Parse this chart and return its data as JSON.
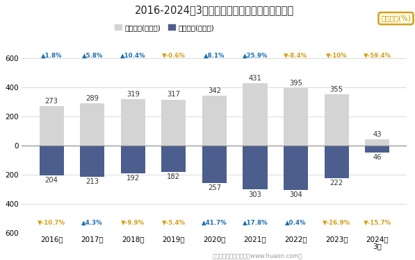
{
  "title": "2016-2024年3月郑州新郑综合保税区进、出口额",
  "years": [
    "2016年",
    "2017年",
    "2018年",
    "2019年",
    "2020年",
    "2021年",
    "2022年",
    "2023年",
    "2024年\n3月"
  ],
  "export_values": [
    273,
    289,
    319,
    317,
    342,
    431,
    395,
    355,
    43
  ],
  "import_values": [
    204,
    213,
    192,
    182,
    257,
    303,
    304,
    222,
    46
  ],
  "export_color": "#d4d4d4",
  "import_color": "#4b5e8d",
  "export_label": "出口总额(亿美元)",
  "import_label": "进口总额(亿美元)",
  "yib_label": "同比增速(%)",
  "export_growth": [
    "▲1.8%",
    "▲5.8%",
    "▲10.4%",
    "▼-0.6%",
    "▲8.1%",
    "▲25.9%",
    "▼-8.4%",
    "▼-10%",
    "▼-59.4%"
  ],
  "import_growth": [
    "▼-10.7%",
    "▲4.3%",
    "▼-9.9%",
    "▼-5.4%",
    "▲41.7%",
    "▲17.8%",
    "▲0.4%",
    "▼-26.9%",
    "▼-15.7%"
  ],
  "export_growth_colors": [
    "#1a6faf",
    "#1a6faf",
    "#1a6faf",
    "#d4a017",
    "#1a6faf",
    "#1a6faf",
    "#d4a017",
    "#d4a017",
    "#d4a017"
  ],
  "import_growth_colors": [
    "#d4a017",
    "#1a6faf",
    "#d4a017",
    "#d4a017",
    "#1a6faf",
    "#1a6faf",
    "#1a6faf",
    "#d4a017",
    "#d4a017"
  ],
  "ylim": [
    -600,
    660
  ],
  "yticks": [
    -600,
    -400,
    -200,
    0,
    200,
    400,
    600
  ],
  "background_color": "#ffffff",
  "footer": "制图：华经产业研究院（www.huaon.com）"
}
